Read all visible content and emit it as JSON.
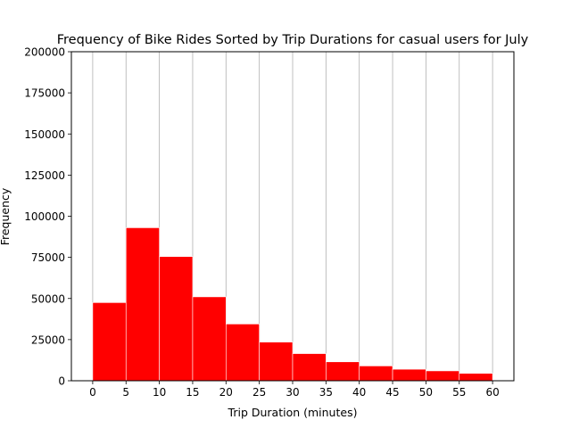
{
  "chart_data": {
    "type": "bar",
    "title": "Frequency of Bike Rides Sorted by Trip Durations for casual users for July",
    "xlabel": "Trip Duration (minutes)",
    "ylabel": "Frequency",
    "bin_edges": [
      0,
      5,
      10,
      15,
      20,
      25,
      30,
      35,
      40,
      45,
      50,
      55,
      60
    ],
    "values": [
      47500,
      93000,
      75500,
      51000,
      34500,
      23500,
      16500,
      11500,
      9000,
      7000,
      6000,
      4500
    ],
    "xticks": [
      0,
      5,
      10,
      15,
      20,
      25,
      30,
      35,
      40,
      45,
      50,
      55,
      60
    ],
    "yticks": [
      0,
      25000,
      50000,
      75000,
      100000,
      125000,
      150000,
      175000,
      200000
    ],
    "xlim": [
      -3.2,
      63.2
    ],
    "ylim": [
      0,
      200000
    ],
    "grid": "vertical",
    "bar_color": "#ff0000",
    "bar_edge_color": "#ffffff",
    "grid_color": "#b0b0b0"
  }
}
